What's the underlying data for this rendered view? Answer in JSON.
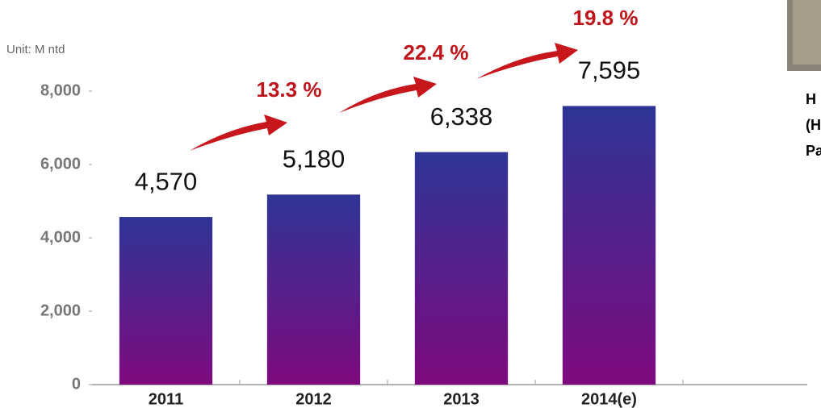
{
  "chart_data": {
    "type": "bar",
    "unit": "Unit:  M ntd",
    "categories": [
      "2011",
      "2012",
      "2013",
      "2014(e)"
    ],
    "values": [
      4570,
      5180,
      6338,
      7595
    ],
    "value_labels": [
      "4,570",
      "5,180",
      "6,338",
      "7,595"
    ],
    "annotations": [
      "13.3 %",
      "22.4 %",
      "19.8 %"
    ],
    "color_top": "#2e3595",
    "color_bottom": "#7e0a7f",
    "ylim": [
      0,
      8000
    ],
    "yticks": [
      0,
      {
        "value": 2000,
        "label": "2,000"
      },
      {
        "value": 4000,
        "label": "4,000"
      },
      {
        "value": 6000,
        "label": "6,000"
      },
      {
        "value": 8000,
        "label": "8,000"
      }
    ]
  },
  "side_text": [
    "H",
    "(H",
    "Pa"
  ]
}
